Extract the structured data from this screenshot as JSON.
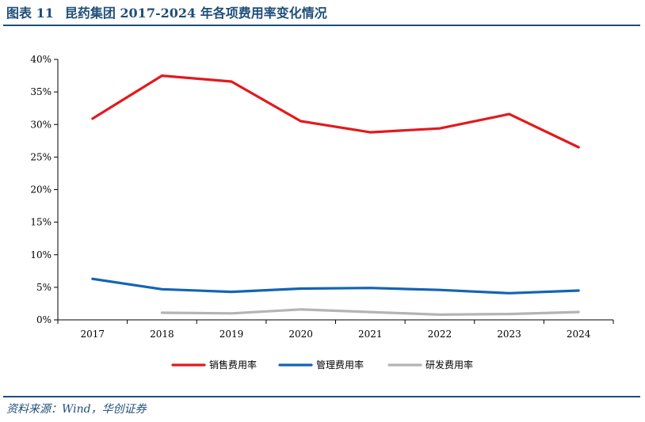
{
  "figure": {
    "number": "图表 11",
    "title": "昆药集团 2017-2024 年各项费用率变化情况",
    "source": "资料来源：Wind，华创证券"
  },
  "colors": {
    "title": "#1f4e79",
    "axis": "#000000",
    "series": [
      "#e3191d",
      "#1464b4",
      "#b4b4b4"
    ]
  },
  "chart_data": {
    "type": "line",
    "title": "",
    "xlabel": "",
    "ylabel": "",
    "categories": [
      "2017",
      "2018",
      "2019",
      "2020",
      "2021",
      "2022",
      "2023",
      "2024"
    ],
    "ylim": [
      0,
      40
    ],
    "yticks": [
      0,
      5,
      10,
      15,
      20,
      25,
      30,
      35,
      40
    ],
    "ytick_labels": [
      "0%",
      "5%",
      "10%",
      "15%",
      "20%",
      "25%",
      "30%",
      "35%",
      "40%"
    ],
    "grid": false,
    "legend_position": "bottom",
    "series": [
      {
        "name": "销售费用率",
        "color": "#e3191d",
        "values": [
          30.9,
          37.5,
          36.6,
          30.5,
          28.8,
          29.4,
          31.6,
          26.5
        ]
      },
      {
        "name": "管理费用率",
        "color": "#1464b4",
        "values": [
          6.3,
          4.7,
          4.3,
          4.8,
          4.9,
          4.6,
          4.1,
          4.5
        ]
      },
      {
        "name": "研发费用率",
        "color": "#b4b4b4",
        "values": [
          null,
          1.1,
          1.0,
          1.6,
          1.2,
          0.8,
          0.9,
          1.2
        ]
      }
    ]
  }
}
